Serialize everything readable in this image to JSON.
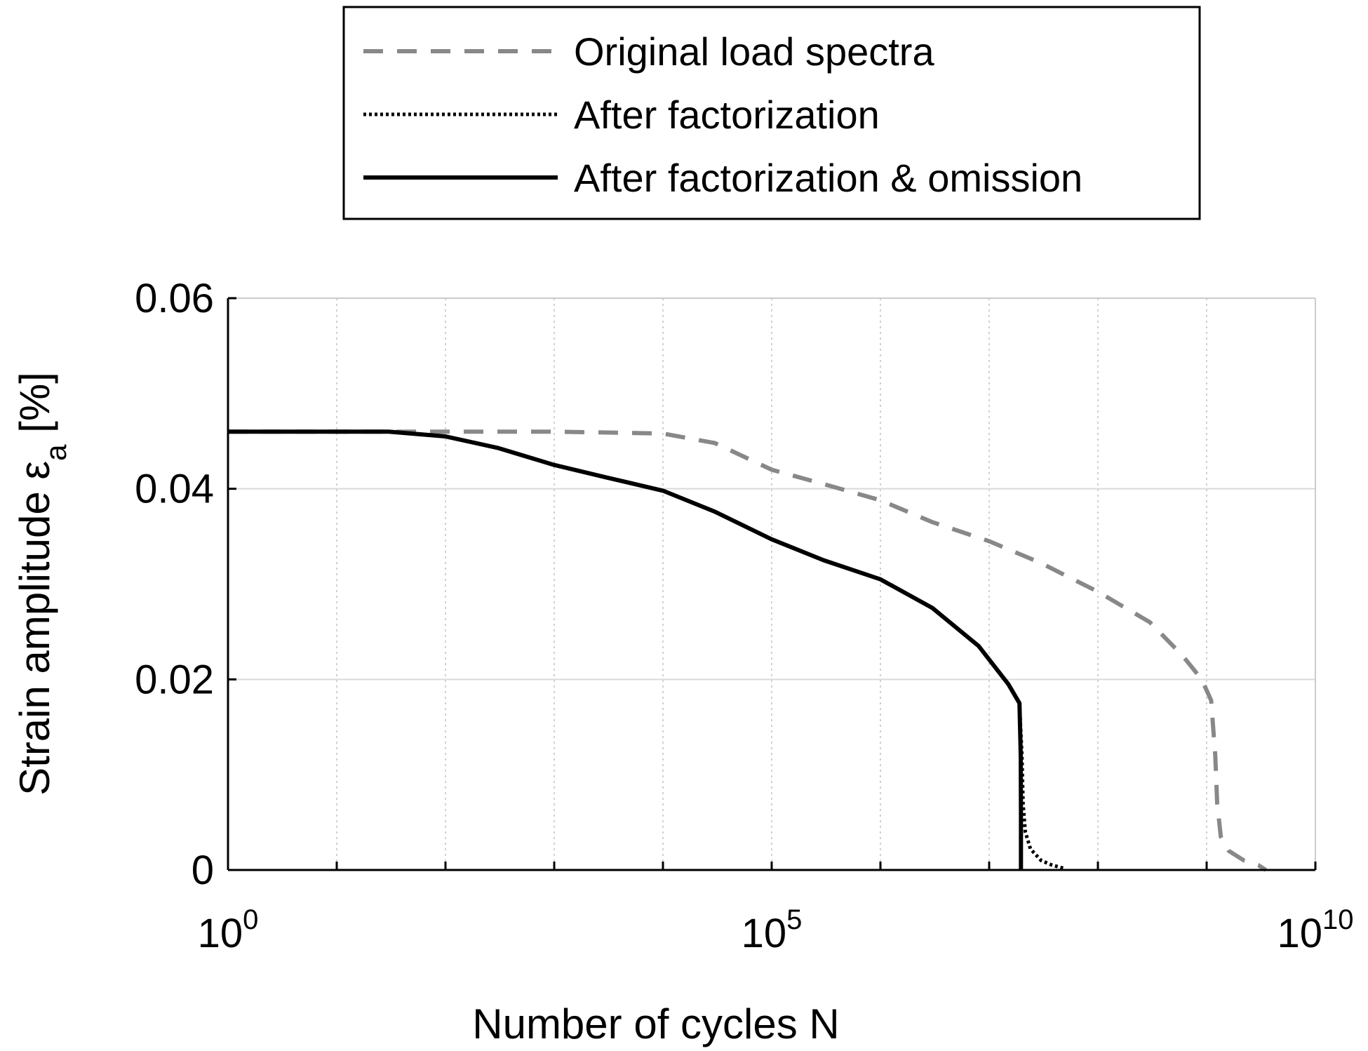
{
  "chart_data": {
    "type": "line",
    "xlabel": "Number of cycles N",
    "ylabel_main": "Strain amplitude ε",
    "ylabel_sub": "a",
    "ylabel_unit": "[%]",
    "x_scale": "log",
    "xlim": [
      1,
      10000000000
    ],
    "ylim": [
      0,
      0.06
    ],
    "grid": true,
    "legend_position": "top-center, above plot",
    "x_ticks": [
      {
        "base": "10",
        "exp": "0",
        "value": 1
      },
      {
        "base": "10",
        "exp": "5",
        "value": 100000
      },
      {
        "base": "10",
        "exp": "10",
        "value": 10000000000
      }
    ],
    "y_ticks": [
      {
        "label": "0",
        "value": 0
      },
      {
        "label": "0.02",
        "value": 0.02
      },
      {
        "label": "0.04",
        "value": 0.04
      },
      {
        "label": "0.06",
        "value": 0.06
      }
    ],
    "series": [
      {
        "name": "Original load spectra",
        "color": "#888888",
        "style": "dashed",
        "points": [
          [
            1,
            0.046
          ],
          [
            100,
            0.046
          ],
          [
            1000,
            0.046
          ],
          [
            10000,
            0.0458
          ],
          [
            30000,
            0.0448
          ],
          [
            100000,
            0.042
          ],
          [
            300000,
            0.0405
          ],
          [
            1000000,
            0.0388
          ],
          [
            3000000,
            0.0365
          ],
          [
            10000000,
            0.0345
          ],
          [
            30000000,
            0.0322
          ],
          [
            100000000,
            0.0292
          ],
          [
            300000000,
            0.026
          ],
          [
            600000000,
            0.0225
          ],
          [
            900000000,
            0.02
          ],
          [
            1100000000,
            0.0178
          ],
          [
            1200000000,
            0.012
          ],
          [
            1250000000,
            0.007
          ],
          [
            1350000000,
            0.0035
          ],
          [
            1600000000,
            0.002
          ],
          [
            2200000000,
            0.001
          ],
          [
            3000000000,
            0.0005
          ],
          [
            3500000000,
            0
          ]
        ]
      },
      {
        "name": "After factorization",
        "color": "#000000",
        "style": "dotted",
        "points": [
          [
            1,
            0.046
          ],
          [
            10,
            0.046
          ],
          [
            30,
            0.046
          ],
          [
            100,
            0.0455
          ],
          [
            300,
            0.0443
          ],
          [
            1000,
            0.0425
          ],
          [
            3000,
            0.0412
          ],
          [
            10000,
            0.0398
          ],
          [
            30000,
            0.0376
          ],
          [
            100000,
            0.0347
          ],
          [
            300000,
            0.0325
          ],
          [
            1000000,
            0.0305
          ],
          [
            3000000,
            0.0275
          ],
          [
            8000000,
            0.0235
          ],
          [
            15000000,
            0.0195
          ],
          [
            19000000,
            0.0175
          ],
          [
            20000000,
            0.012
          ],
          [
            20500000,
            0.007
          ],
          [
            21500000,
            0.004
          ],
          [
            24000000,
            0.0022
          ],
          [
            30000000,
            0.001
          ],
          [
            38000000,
            0.0005
          ],
          [
            48000000,
            0.0002
          ]
        ]
      },
      {
        "name": "After factorization & omission",
        "color": "#000000",
        "style": "solid",
        "points": [
          [
            1,
            0.046
          ],
          [
            10,
            0.046
          ],
          [
            30,
            0.046
          ],
          [
            100,
            0.0455
          ],
          [
            300,
            0.0443
          ],
          [
            1000,
            0.0425
          ],
          [
            3000,
            0.0412
          ],
          [
            10000,
            0.0398
          ],
          [
            30000,
            0.0376
          ],
          [
            100000,
            0.0347
          ],
          [
            300000,
            0.0325
          ],
          [
            1000000,
            0.0305
          ],
          [
            3000000,
            0.0275
          ],
          [
            8000000,
            0.0235
          ],
          [
            15000000,
            0.0195
          ],
          [
            19000000,
            0.0175
          ],
          [
            19500000,
            0.012
          ],
          [
            19600000,
            0.006
          ],
          [
            19600000,
            0
          ]
        ]
      }
    ]
  }
}
